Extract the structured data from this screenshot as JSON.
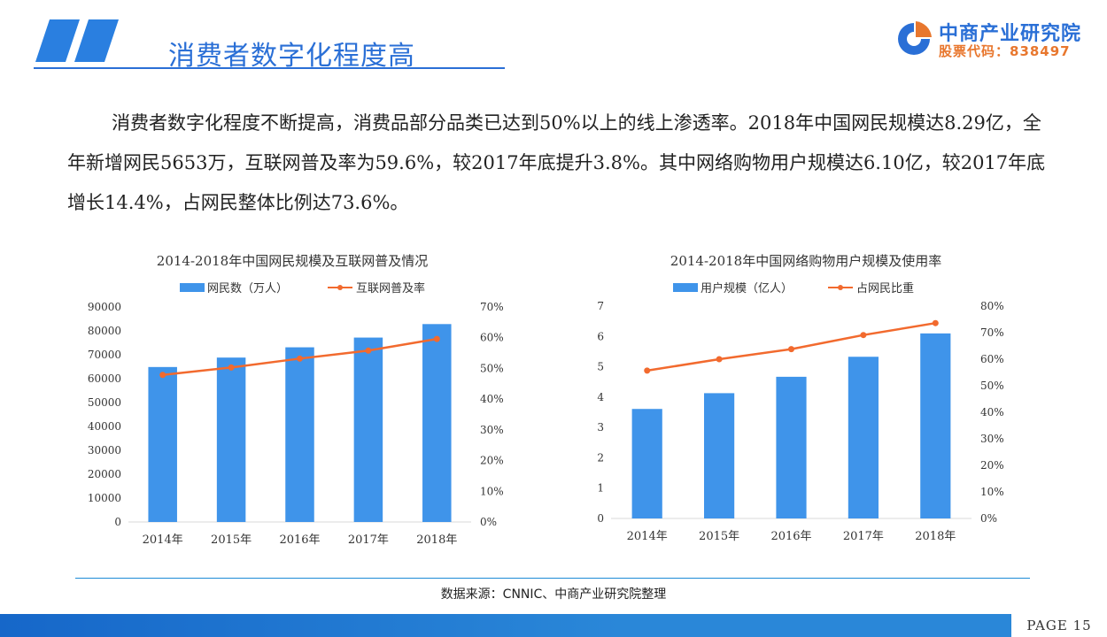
{
  "header": {
    "title": "消费者数字化程度高",
    "logo_name": "中商产业研究院",
    "logo_code": "股票代码：838497"
  },
  "paragraph": "消费者数字化程度不断提高，消费品部分品类已达到50%以上的线上渗透率。2018年中国网民规模达8.29亿，全年新增网民5653万，互联网普及率为59.6%，较2017年底提升3.8%。其中网络购物用户规模达6.10亿，较2017年底增长14.4%，占网民整体比例达73.6%。",
  "chart_data": [
    {
      "type": "bar",
      "title": "2014-2018年中国网民规模及互联网普及情况",
      "categories": [
        "2014年",
        "2015年",
        "2016年",
        "2017年",
        "2018年"
      ],
      "series": [
        {
          "name": "网民数（万人）",
          "type": "bar",
          "axis": "left",
          "values": [
            64875,
            68826,
            73125,
            77198,
            82851
          ],
          "color": "#3f94ea"
        },
        {
          "name": "互联网普及率",
          "type": "line",
          "axis": "right",
          "values": [
            47.9,
            50.3,
            53.2,
            55.8,
            59.6
          ],
          "color": "#f26a2e"
        }
      ],
      "y_left": {
        "min": 0,
        "max": 90000,
        "ticks": [
          "0",
          "10000",
          "20000",
          "30000",
          "40000",
          "50000",
          "60000",
          "70000",
          "80000",
          "90000"
        ]
      },
      "y_right": {
        "min": 0,
        "max": 70,
        "ticks": [
          "0%",
          "10%",
          "20%",
          "30%",
          "40%",
          "50%",
          "60%",
          "70%"
        ]
      },
      "legend": "top"
    },
    {
      "type": "bar",
      "title": "2014-2018年中国网络购物用户规模及使用率",
      "categories": [
        "2014年",
        "2015年",
        "2016年",
        "2017年",
        "2018年"
      ],
      "series": [
        {
          "name": "用户规模（亿人）",
          "type": "bar",
          "axis": "left",
          "values": [
            3.61,
            4.13,
            4.67,
            5.33,
            6.1
          ],
          "color": "#3f94ea"
        },
        {
          "name": "占网民比重",
          "type": "line",
          "axis": "right",
          "values": [
            55.7,
            60.0,
            63.8,
            69.1,
            73.6
          ],
          "color": "#f26a2e"
        }
      ],
      "y_left": {
        "min": 0,
        "max": 7,
        "ticks": [
          "0",
          "1",
          "2",
          "3",
          "4",
          "5",
          "6",
          "7"
        ]
      },
      "y_right": {
        "min": 0,
        "max": 80,
        "ticks": [
          "0%",
          "10%",
          "20%",
          "30%",
          "40%",
          "50%",
          "60%",
          "70%",
          "80%"
        ]
      },
      "legend": "top"
    }
  ],
  "source": "数据来源：CNNIC、中商产业研究院整理",
  "footer": {
    "page": "PAGE  15"
  }
}
